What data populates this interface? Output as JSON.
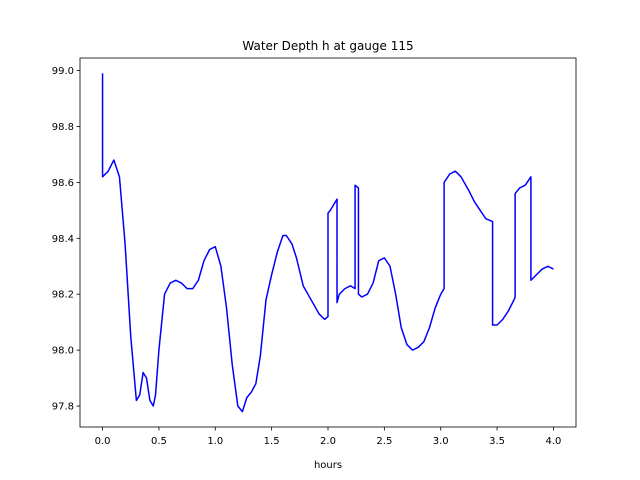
{
  "chart_data": {
    "type": "line",
    "title": "Water Depth h at gauge 115",
    "xlabel": "hours",
    "ylabel": "",
    "xlim": [
      -0.2,
      4.2
    ],
    "ylim": [
      97.725,
      99.045
    ],
    "xticks": [
      "0.0",
      "0.5",
      "1.0",
      "1.5",
      "2.0",
      "2.5",
      "3.0",
      "3.5",
      "4.0"
    ],
    "yticks": [
      "97.8",
      "98.0",
      "98.2",
      "98.4",
      "98.6",
      "98.8",
      "99.0"
    ],
    "grid": false,
    "line_color": "#0000ff",
    "series": [
      {
        "x": [
          0.0,
          0.0,
          0.05,
          0.1,
          0.15,
          0.2,
          0.25,
          0.3,
          0.33,
          0.36,
          0.39,
          0.42,
          0.45,
          0.47,
          0.5,
          0.55,
          0.6,
          0.65,
          0.7,
          0.75,
          0.8,
          0.85,
          0.9,
          0.95,
          1.0,
          1.05,
          1.1,
          1.15,
          1.2,
          1.24,
          1.28,
          1.32,
          1.36,
          1.4,
          1.45,
          1.5,
          1.55,
          1.6,
          1.63,
          1.68,
          1.72,
          1.78,
          1.85,
          1.92,
          1.97,
          2.0,
          2.0,
          2.02,
          2.05,
          2.08,
          2.08,
          2.1,
          2.15,
          2.2,
          2.24,
          2.24,
          2.27,
          2.27,
          2.3,
          2.35,
          2.4,
          2.45,
          2.5,
          2.55,
          2.6,
          2.65,
          2.7,
          2.75,
          2.8,
          2.85,
          2.9,
          2.95,
          3.0,
          3.03,
          3.03,
          3.08,
          3.13,
          3.18,
          3.25,
          3.3,
          3.35,
          3.4,
          3.46,
          3.46,
          3.5,
          3.55,
          3.6,
          3.65,
          3.66,
          3.66,
          3.7,
          3.75,
          3.8,
          3.8,
          3.85,
          3.9,
          3.95,
          4.0
        ],
        "y": [
          98.99,
          98.62,
          98.64,
          98.68,
          98.62,
          98.38,
          98.05,
          97.82,
          97.84,
          97.92,
          97.9,
          97.82,
          97.8,
          97.84,
          98.0,
          98.2,
          98.24,
          98.25,
          98.24,
          98.22,
          98.22,
          98.25,
          98.32,
          98.36,
          98.37,
          98.3,
          98.15,
          97.95,
          97.8,
          97.78,
          97.83,
          97.85,
          97.88,
          97.98,
          98.18,
          98.27,
          98.35,
          98.41,
          98.41,
          98.38,
          98.33,
          98.23,
          98.18,
          98.13,
          98.11,
          98.12,
          98.49,
          98.5,
          98.52,
          98.54,
          98.17,
          98.2,
          98.22,
          98.23,
          98.22,
          98.59,
          98.58,
          98.2,
          98.19,
          98.2,
          98.24,
          98.32,
          98.33,
          98.3,
          98.2,
          98.08,
          98.02,
          98.0,
          98.01,
          98.03,
          98.08,
          98.15,
          98.2,
          98.22,
          98.6,
          98.63,
          98.64,
          98.62,
          98.57,
          98.53,
          98.5,
          98.47,
          98.46,
          98.09,
          98.09,
          98.11,
          98.14,
          98.18,
          98.19,
          98.56,
          98.58,
          98.59,
          98.62,
          98.25,
          98.27,
          98.29,
          98.3,
          98.29
        ]
      }
    ]
  }
}
